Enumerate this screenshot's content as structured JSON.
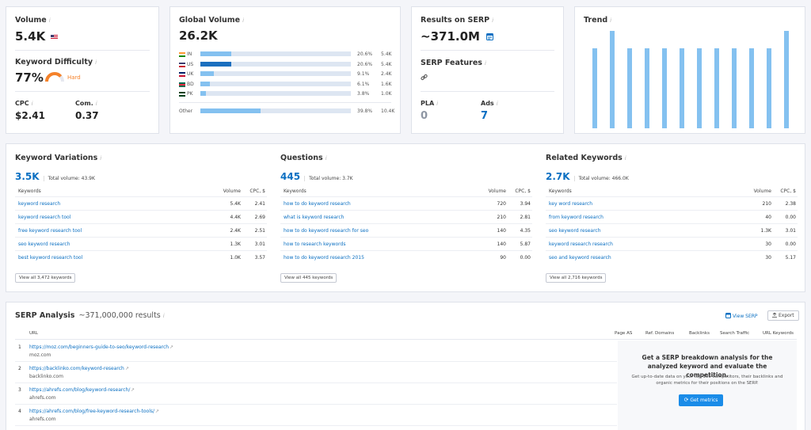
{
  "volume": {
    "title": "Volume",
    "value": "5.4K",
    "flag": "US"
  },
  "difficulty": {
    "title": "Keyword Difficulty",
    "value": "77%",
    "label": "Hard",
    "level": 0.77,
    "color": "#f5822a"
  },
  "cpc": {
    "title": "CPC",
    "value": "$2.41"
  },
  "com": {
    "title": "Com.",
    "value": "0.37"
  },
  "global": {
    "title": "Global Volume",
    "value": "26.2K",
    "rows": [
      {
        "code": "IN",
        "pct": "20.6%",
        "val": "5.4K",
        "share": 0.206
      },
      {
        "code": "US",
        "pct": "20.6%",
        "val": "5.4K",
        "share": 0.206
      },
      {
        "code": "UK",
        "pct": "9.1%",
        "val": "2.4K",
        "share": 0.091
      },
      {
        "code": "BD",
        "pct": "6.1%",
        "val": "1.6K",
        "share": 0.061
      },
      {
        "code": "PK",
        "pct": "3.8%",
        "val": "1.0K",
        "share": 0.038
      }
    ],
    "other": {
      "label": "Other",
      "pct": "39.8%",
      "val": "10.4K",
      "share": 0.398
    }
  },
  "serp": {
    "title": "Results on SERP",
    "value": "~371.0M",
    "features_title": "SERP Features",
    "pla_title": "PLA",
    "pla_value": "0",
    "ads_title": "Ads",
    "ads_value": "7"
  },
  "trend": {
    "title": "Trend",
    "values": [
      0.82,
      1.0,
      0.82,
      0.82,
      0.82,
      0.82,
      0.82,
      0.82,
      0.82,
      0.82,
      0.82,
      1.0
    ]
  },
  "variations": {
    "title": "Keyword Variations",
    "count": "3.5K",
    "total": "Total volume: 43.9K",
    "h_kw": "Keywords",
    "h_vol": "Volume",
    "h_cpc": "CPC, $",
    "rows": [
      {
        "kw": "keyword research",
        "vol": "5.4K",
        "cpc": "2.41"
      },
      {
        "kw": "keyword research tool",
        "vol": "4.4K",
        "cpc": "2.69"
      },
      {
        "kw": "free keyword research tool",
        "vol": "2.4K",
        "cpc": "2.51"
      },
      {
        "kw": "seo keyword research",
        "vol": "1.3K",
        "cpc": "3.01"
      },
      {
        "kw": "best keyword research tool",
        "vol": "1.0K",
        "cpc": "3.57"
      }
    ],
    "view_all": "View all 3,472 keywords"
  },
  "questions": {
    "title": "Questions",
    "count": "445",
    "total": "Total volume: 3.7K",
    "h_kw": "Keywords",
    "h_vol": "Volume",
    "h_cpc": "CPC, $",
    "rows": [
      {
        "kw": "how to do keyword research",
        "vol": "720",
        "cpc": "3.94"
      },
      {
        "kw": "what is keyword research",
        "vol": "210",
        "cpc": "2.81"
      },
      {
        "kw": "how to do keyword research for seo",
        "vol": "140",
        "cpc": "4.35"
      },
      {
        "kw": "how to research keywords",
        "vol": "140",
        "cpc": "5.87"
      },
      {
        "kw": "how to do keyword research 2015",
        "vol": "90",
        "cpc": "0.00"
      }
    ],
    "view_all": "View all 445 keywords"
  },
  "related": {
    "title": "Related Keywords",
    "count": "2.7K",
    "total": "Total volume: 466.0K",
    "h_kw": "Keywords",
    "h_vol": "Volume",
    "h_cpc": "CPC, $",
    "rows": [
      {
        "kw": "key word research",
        "vol": "210",
        "cpc": "2.38"
      },
      {
        "kw": "from keyword research",
        "vol": "40",
        "cpc": "0.00"
      },
      {
        "kw": "seo keyword research",
        "vol": "1.3K",
        "cpc": "3.01"
      },
      {
        "kw": "keyword research research",
        "vol": "30",
        "cpc": "0.00"
      },
      {
        "kw": "seo and keyword research",
        "vol": "30",
        "cpc": "5.17"
      }
    ],
    "view_all": "View all 2,716 keywords"
  },
  "analysis": {
    "title": "SERP Analysis",
    "subtitle": "~371,000,000 results",
    "view_serp": "View SERP",
    "export": "Export",
    "cols": {
      "url": "URL",
      "page_as": "Page AS",
      "ref": "Ref. Domains",
      "backlinks": "Backlinks",
      "traffic": "Search Traffic",
      "url_kw": "URL Keywords"
    },
    "rows": [
      {
        "n": "1",
        "url": "https://moz.com/beginners-guide-to-seo/keyword-research",
        "domain": "moz.com"
      },
      {
        "n": "2",
        "url": "https://backlinko.com/keyword-research",
        "domain": "backlinko.com"
      },
      {
        "n": "3",
        "url": "https://ahrefs.com/blog/keyword-research/",
        "domain": "ahrefs.com"
      },
      {
        "n": "4",
        "url": "https://ahrefs.com/blog/free-keyword-research-tools/",
        "domain": "ahrefs.com"
      }
    ],
    "promo_title": "Get a SERP breakdown analysis for the analyzed keyword and evaluate the competition.",
    "promo_text": "Get up-to-date data on your top 100 competitors, their backlinks and organic metrics for their positions on the SERP.",
    "promo_button": "Get metrics"
  }
}
